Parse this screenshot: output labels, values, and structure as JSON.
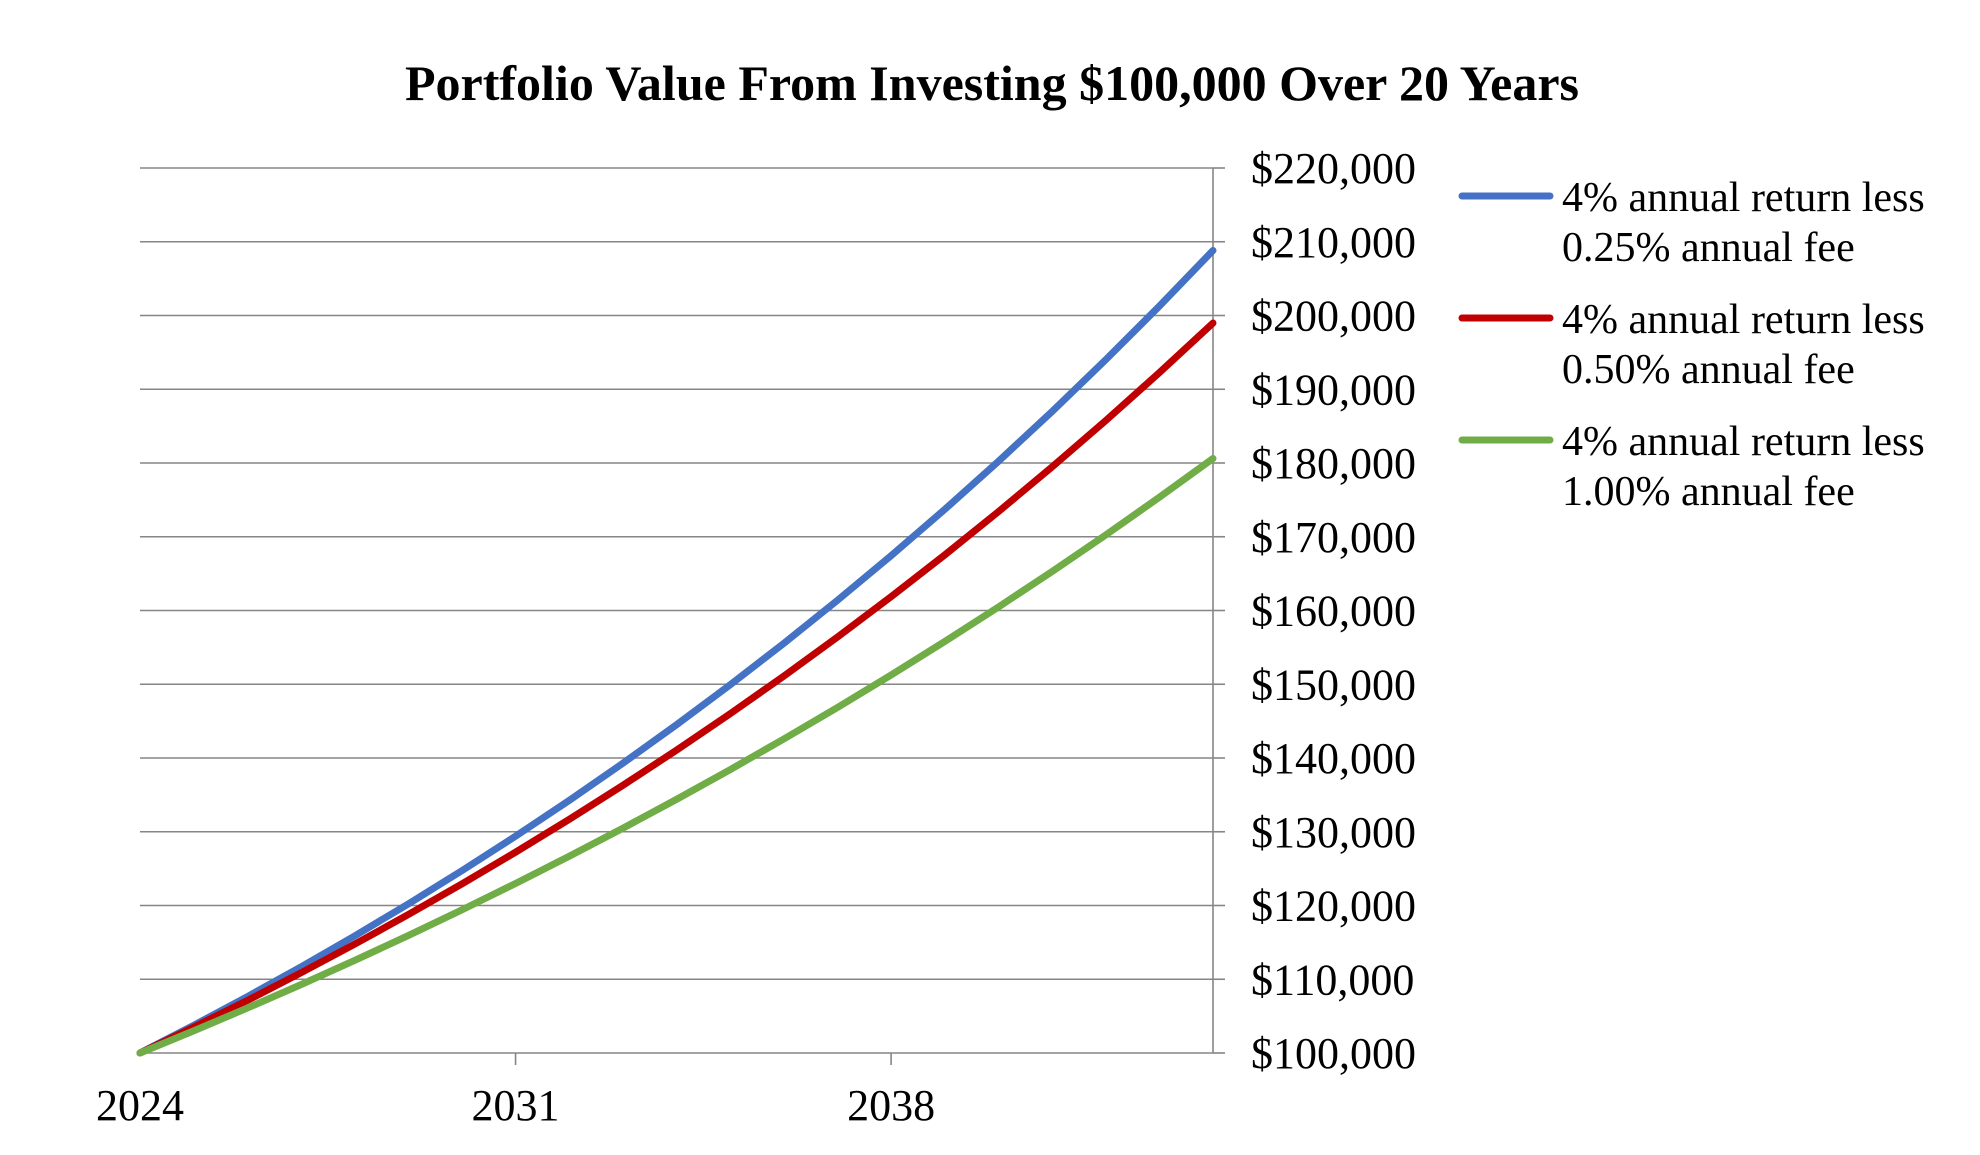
{
  "chart_data": {
    "type": "line",
    "title": "Portfolio Value From Investing $100,000 Over 20 Years",
    "xlabel": "",
    "ylabel": "",
    "x": [
      2024,
      2025,
      2026,
      2027,
      2028,
      2029,
      2030,
      2031,
      2032,
      2033,
      2034,
      2035,
      2036,
      2037,
      2038,
      2039,
      2040,
      2041,
      2042,
      2043,
      2044
    ],
    "x_tick_labels": [
      "2024",
      "2031",
      "2038"
    ],
    "x_tick_values": [
      2024,
      2031,
      2038
    ],
    "ylim": [
      100000,
      220000
    ],
    "y_tick_values": [
      100000,
      110000,
      120000,
      130000,
      140000,
      150000,
      160000,
      170000,
      180000,
      190000,
      200000,
      210000,
      220000
    ],
    "y_tick_labels": [
      "$100,000",
      "$110,000",
      "$120,000",
      "$130,000",
      "$140,000",
      "$150,000",
      "$160,000",
      "$170,000",
      "$180,000",
      "$190,000",
      "$200,000",
      "$210,000",
      "$220,000"
    ],
    "y_axis_position": "right",
    "grid": true,
    "legend_position": "right",
    "series": [
      {
        "name": "4% annual return less 0.25% annual fee",
        "legend_lines": [
          "4% annual return less",
          "0.25% annual fee"
        ],
        "color": "#4472C4",
        "values": [
          100000,
          103750,
          107641,
          111677,
          115865,
          120210,
          124718,
          129395,
          134247,
          139282,
          144505,
          149924,
          155546,
          161379,
          167431,
          173709,
          180224,
          186982,
          193994,
          201268,
          208816
        ]
      },
      {
        "name": "4% annual return less 0.50% annual fee",
        "legend_lines": [
          "4% annual return less",
          "0.50% annual fee"
        ],
        "color": "#C00000",
        "values": [
          100000,
          103500,
          107123,
          110872,
          114752,
          118769,
          122926,
          127228,
          131681,
          136290,
          141060,
          145997,
          151107,
          156396,
          161869,
          167535,
          173399,
          179468,
          185749,
          192250,
          198979
        ]
      },
      {
        "name": "4% annual return less 1.00% annual fee",
        "legend_lines": [
          "4% annual return less",
          "1.00% annual fee"
        ],
        "color": "#70AD47",
        "values": [
          100000,
          103000,
          106090,
          109273,
          112551,
          115927,
          119405,
          122987,
          126677,
          130477,
          134392,
          138423,
          142576,
          146853,
          151259,
          155797,
          160471,
          165285,
          170243,
          175351,
          180611
        ]
      }
    ]
  }
}
